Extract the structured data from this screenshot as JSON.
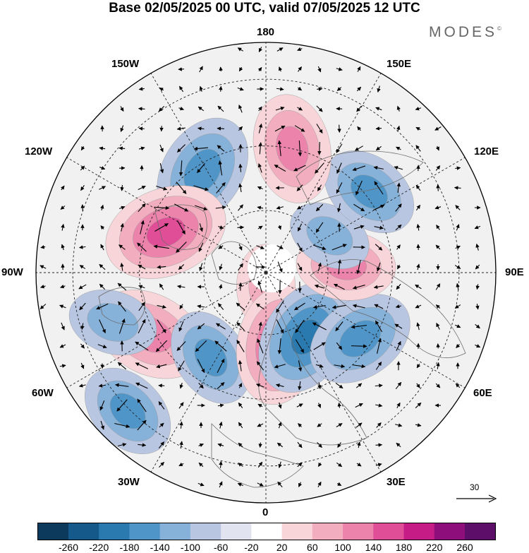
{
  "header": {
    "title": "Base 02/05/2025 00 UTC, valid 07/05/2025 12 UTC",
    "brand": "MODES"
  },
  "map": {
    "projection": "north-polar-stereographic",
    "longitude_labels": {
      "lon_180": "180",
      "lon_150E": "150E",
      "lon_120E": "120E",
      "lon_90E": "90E",
      "lon_60E": "60E",
      "lon_30E": "30E",
      "lon_0": "0",
      "lon_30W": "30W",
      "lon_60W": "60W",
      "lon_90W": "90W",
      "lon_120W": "120W",
      "lon_150W": "150W"
    },
    "reference_vector": {
      "label": "30"
    },
    "grid": "dashed meridians every 30° and latitude circles"
  },
  "colorbar": {
    "tick_labels": [
      "-260",
      "-220",
      "-180",
      "-140",
      "-100",
      "-60",
      "-20",
      "20",
      "60",
      "100",
      "140",
      "180",
      "220",
      "260"
    ],
    "colors": [
      "#0c3a5c",
      "#15588a",
      "#2a7ab0",
      "#4f95c8",
      "#86b1d8",
      "#b9c6e2",
      "#e2e3f0",
      "#ffffff",
      "#f8d5d8",
      "#f2aebf",
      "#ec83ab",
      "#e14e98",
      "#c51d85",
      "#8e0f7c",
      "#5d0e68"
    ]
  },
  "anomalies": [
    {
      "lon": 0,
      "dist": 0.06,
      "sign": "pos",
      "strength": 0.55,
      "note": "north pole low signal"
    },
    {
      "lon": -62,
      "dist": 0.57,
      "sign": "pos",
      "strength": 0.85
    },
    {
      "lon": -33,
      "dist": 0.44,
      "sign": "neg",
      "strength": 0.7
    },
    {
      "lon": 10,
      "dist": 0.32,
      "sign": "pos",
      "strength": 0.9
    },
    {
      "lon": 32,
      "dist": 0.33,
      "sign": "neg",
      "strength": 0.9
    },
    {
      "lon": 55,
      "dist": 0.5,
      "sign": "neg",
      "strength": 0.8
    },
    {
      "lon": 95,
      "dist": 0.35,
      "sign": "pos",
      "strength": 0.7
    },
    {
      "lon": 120,
      "dist": 0.32,
      "sign": "neg",
      "strength": 0.55
    },
    {
      "lon": 128,
      "dist": 0.57,
      "sign": "neg",
      "strength": 0.7
    },
    {
      "lon": 168,
      "dist": 0.55,
      "sign": "pos",
      "strength": 0.8
    },
    {
      "lon": -148,
      "dist": 0.52,
      "sign": "neg",
      "strength": 0.85
    },
    {
      "lon": -112,
      "dist": 0.47,
      "sign": "pos",
      "strength": 0.95
    },
    {
      "lon": -72,
      "dist": 0.7,
      "sign": "neg",
      "strength": 0.6
    },
    {
      "lon": -45,
      "dist": 0.85,
      "sign": "neg",
      "strength": 0.7
    }
  ]
}
